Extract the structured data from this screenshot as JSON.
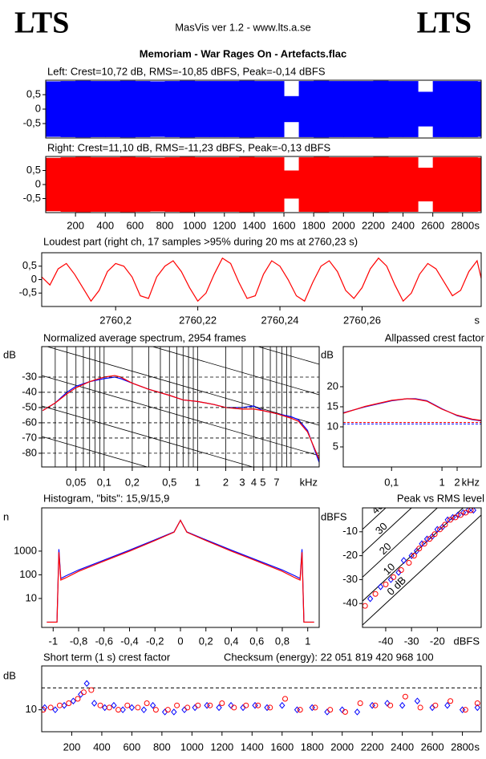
{
  "header": {
    "logo_left": "LTS",
    "app": "MasVis ver 1.2 - www.lts.a.se",
    "logo_right": "LTS",
    "file": "Memoriam - War Rages On - Artefacts.flac"
  },
  "chart_data": [
    {
      "type": "waveform",
      "title": "Left: Crest=10,72 dB, RMS=-10,85 dBFS, Peak=-0,14 dBFS",
      "color": "#0000ff",
      "x": [
        0,
        100,
        200,
        300,
        400,
        500,
        600,
        700,
        800,
        900,
        1000,
        1100,
        1200,
        1300,
        1400,
        1500,
        1600,
        1700,
        1800,
        1900,
        2000,
        2100,
        2200,
        2300,
        2400,
        2500,
        2600,
        2700,
        2800,
        2900
      ],
      "values": [
        0.96,
        0.97,
        0.98,
        0.97,
        0.97,
        0.98,
        0.97,
        0.96,
        0.97,
        0.98,
        0.97,
        0.97,
        0.97,
        0.98,
        0.97,
        0.97,
        0.45,
        0.97,
        0.98,
        0.97,
        0.97,
        0.97,
        0.98,
        0.97,
        0.97,
        0.6,
        0.97,
        0.97,
        0.97,
        0.96
      ],
      "xlim": [
        0,
        2925
      ],
      "ylim": [
        -1,
        1
      ],
      "yticks": [
        {
          "value": 0.5,
          "label": "0,5"
        },
        0,
        {
          "value": -0.5,
          "label": "-0,5"
        }
      ]
    },
    {
      "type": "waveform",
      "title": "Right: Crest=11,10 dB, RMS=-11,23 dBFS, Peak=-0,13 dBFS",
      "color": "#ff0000",
      "x_label": "s",
      "x": [
        0,
        100,
        200,
        300,
        400,
        500,
        600,
        700,
        800,
        900,
        1000,
        1100,
        1200,
        1300,
        1400,
        1500,
        1600,
        1700,
        1800,
        1900,
        2000,
        2100,
        2200,
        2300,
        2400,
        2500,
        2600,
        2700,
        2800,
        2900
      ],
      "values": [
        0.95,
        0.97,
        0.98,
        0.97,
        0.97,
        0.98,
        0.97,
        0.96,
        0.97,
        0.98,
        0.97,
        0.97,
        0.97,
        0.98,
        0.97,
        0.97,
        0.5,
        0.97,
        0.98,
        0.97,
        0.97,
        0.97,
        0.98,
        0.97,
        0.97,
        0.6,
        0.97,
        0.97,
        0.97,
        0.96
      ],
      "xlim": [
        0,
        2925
      ],
      "xticks": [
        200,
        400,
        600,
        800,
        1000,
        1200,
        1400,
        1600,
        1800,
        2000,
        2200,
        2400,
        2600,
        2800
      ],
      "ylim": [
        -1,
        1
      ],
      "yticks": [
        {
          "value": 0.5,
          "label": "0,5"
        },
        0,
        {
          "value": -0.5,
          "label": "-0,5"
        }
      ]
    },
    {
      "type": "line",
      "title": "Loudest part (right ch, 17 samples >95% during 20 ms at 2760,23 s)",
      "color": "#ff0000",
      "x_label": "s",
      "x": [
        2760.182,
        2760.184,
        2760.186,
        2760.188,
        2760.19,
        2760.192,
        2760.194,
        2760.196,
        2760.198,
        2760.2,
        2760.202,
        2760.204,
        2760.206,
        2760.208,
        2760.21,
        2760.212,
        2760.214,
        2760.216,
        2760.218,
        2760.22,
        2760.222,
        2760.224,
        2760.226,
        2760.228,
        2760.23,
        2760.232,
        2760.234,
        2760.236,
        2760.238,
        2760.24,
        2760.242,
        2760.244,
        2760.246,
        2760.248,
        2760.25,
        2760.252,
        2760.254,
        2760.256,
        2760.258,
        2760.26,
        2760.262,
        2760.264,
        2760.266,
        2760.268,
        2760.27,
        2760.272,
        2760.274,
        2760.276,
        2760.278,
        2760.28,
        2760.282,
        2760.284,
        2760.286,
        2760.288,
        2760.29
      ],
      "values": [
        0.1,
        -0.2,
        0.4,
        0.6,
        0.2,
        -0.3,
        -0.8,
        -0.4,
        0.3,
        0.6,
        0.5,
        0.1,
        -0.6,
        -0.7,
        0.1,
        0.5,
        0.7,
        0.3,
        -0.3,
        -0.8,
        -0.5,
        0.2,
        0.8,
        0.6,
        -0.1,
        -0.7,
        -0.6,
        0.2,
        0.7,
        0.5,
        0.0,
        -0.6,
        -0.8,
        -0.1,
        0.5,
        0.7,
        0.3,
        -0.4,
        -0.7,
        -0.3,
        0.4,
        0.8,
        0.5,
        -0.2,
        -0.8,
        -0.5,
        0.2,
        0.6,
        0.4,
        -0.1,
        -0.6,
        -0.4,
        0.3,
        0.7,
        -0.6
      ],
      "xlim": [
        2760.182,
        2760.289
      ],
      "xticks": [
        {
          "value": 2760.2,
          "label": "2760,2"
        },
        {
          "value": 2760.22,
          "label": "2760,22"
        },
        {
          "value": 2760.24,
          "label": "2760,24"
        },
        {
          "value": 2760.26,
          "label": "2760,26"
        }
      ],
      "ylim": [
        -1,
        1
      ],
      "yticks": [
        {
          "value": 0.5,
          "label": "0,5"
        },
        0,
        {
          "value": -0.5,
          "label": "-0,5"
        }
      ]
    },
    {
      "type": "line",
      "title": "Normalized average spectrum, 2954 frames",
      "y_label": "dB",
      "x_label": "kHz",
      "x_scale": "log",
      "grid": true,
      "x": [
        0.022,
        0.03,
        0.04,
        0.05,
        0.07,
        0.1,
        0.13,
        0.15,
        0.2,
        0.3,
        0.5,
        0.7,
        1,
        1.5,
        2,
        3,
        4,
        5,
        7,
        10,
        12,
        15,
        20
      ],
      "series": [
        {
          "color": "#0000ff",
          "values": [
            -52,
            -47,
            -40,
            -36,
            -33,
            -31,
            -30,
            -31,
            -34,
            -38,
            -42,
            -45,
            -46,
            -48,
            -50,
            -50,
            -49,
            -52,
            -54,
            -56,
            -58,
            -65,
            -86
          ]
        },
        {
          "color": "#ff0000",
          "values": [
            -52,
            -47,
            -41,
            -37,
            -33,
            -30,
            -29,
            -30,
            -34,
            -38,
            -42,
            -45,
            -46,
            -48,
            -50,
            -51,
            -51,
            -52,
            -54,
            -57,
            -59,
            -66,
            -84
          ]
        }
      ],
      "xlim": [
        0.0215,
        20
      ],
      "xticks": [
        {
          "value": 0.05,
          "label": "0,05"
        },
        {
          "value": 0.1,
          "label": "0,1"
        },
        {
          "value": 0.2,
          "label": "0,2"
        },
        {
          "value": 0.5,
          "label": "0,5"
        },
        1,
        2,
        3,
        4,
        5,
        7
      ],
      "ylim": [
        -89,
        -10
      ],
      "yticks": [
        -30,
        -40,
        -50,
        -60,
        -70,
        -80
      ]
    },
    {
      "type": "line",
      "title": "Allpassed crest factor",
      "y_label": "dB",
      "x_label": "kHz",
      "x_scale": "log",
      "x": [
        0.011,
        0.03,
        0.1,
        0.2,
        0.3,
        0.5,
        1,
        2,
        4,
        6
      ],
      "series": [
        {
          "color": "#0000ff",
          "values": [
            13.5,
            15,
            16.5,
            17,
            17,
            16.5,
            14.5,
            12.8,
            11.8,
            11.5
          ]
        },
        {
          "color": "#ff0000",
          "values": [
            13.4,
            15.1,
            16.6,
            17,
            16.9,
            16.4,
            14.4,
            12.9,
            11.9,
            11.6
          ]
        }
      ],
      "reference_lines": [
        {
          "value": 10.72,
          "color": "#0000ff"
        },
        {
          "value": 11.1,
          "color": "#ff0000"
        }
      ],
      "xlim": [
        0.011,
        6
      ],
      "xticks": [
        {
          "value": 0.1,
          "label": "0,1"
        },
        1,
        2
      ],
      "ylim": [
        0,
        30
      ],
      "yticks": [
        5,
        10,
        15,
        20
      ]
    },
    {
      "type": "line",
      "title": "Histogram, \"bits\": 15,9/15,9",
      "y_label": "n",
      "y_scale": "log",
      "x": [
        -1.05,
        -0.97,
        -0.955,
        -0.94,
        -0.9,
        -0.8,
        -0.6,
        -0.4,
        -0.2,
        -0.05,
        0,
        0.05,
        0.2,
        0.4,
        0.6,
        0.8,
        0.9,
        0.94,
        0.955,
        0.97,
        1.05
      ],
      "series": [
        {
          "color": "#0000ff",
          "values": [
            1,
            1,
            1200,
            70,
            90,
            160,
            420,
            1100,
            3000,
            6500,
            20000,
            6500,
            3000,
            1100,
            420,
            160,
            90,
            70,
            1200,
            1,
            1
          ]
        },
        {
          "color": "#ff0000",
          "values": [
            1,
            1,
            900,
            60,
            75,
            140,
            380,
            1000,
            2800,
            6300,
            20000,
            6300,
            2800,
            1000,
            380,
            140,
            75,
            60,
            900,
            1,
            1
          ]
        }
      ],
      "xlim": [
        -1.09,
        1.09
      ],
      "xticks": [
        -1,
        {
          "value": -0.8,
          "label": "-0,8"
        },
        {
          "value": -0.6,
          "label": "-0,6"
        },
        {
          "value": -0.4,
          "label": "-0,4"
        },
        {
          "value": -0.2,
          "label": "-0,2"
        },
        0,
        {
          "value": 0.2,
          "label": "0,2"
        },
        {
          "value": 0.4,
          "label": "0,4"
        },
        {
          "value": 0.6,
          "label": "0,6"
        },
        {
          "value": 0.8,
          "label": "0,8"
        },
        1
      ],
      "ylim": [
        0.6,
        67000
      ],
      "yticks": [
        10,
        100,
        1000
      ]
    },
    {
      "type": "scatter",
      "title": "Peak vs RMS level",
      "y_label": "dBFS",
      "x_label": "dBFS",
      "diagonals": [
        {
          "value": 40,
          "label": "40"
        },
        {
          "value": 30,
          "label": "30"
        },
        {
          "value": 20,
          "label": "20"
        },
        {
          "value": 10,
          "label": "10"
        },
        {
          "value": 0,
          "label": "0 dB"
        }
      ],
      "series": [
        {
          "color": "#0000ff",
          "marker": "diamond",
          "x": [
            -46,
            -42,
            -38,
            -35,
            -33,
            -30,
            -28,
            -26,
            -24,
            -22,
            -20,
            -18,
            -16,
            -14,
            -12,
            -10,
            -8,
            -6
          ],
          "values": [
            -38,
            -33,
            -30,
            -27,
            -22,
            -20,
            -18,
            -15,
            -13,
            -12,
            -9,
            -8,
            -5,
            -4,
            -3,
            -2,
            -1,
            -1
          ]
        },
        {
          "color": "#ff0000",
          "marker": "circle",
          "x": [
            -48,
            -44,
            -40,
            -37,
            -34,
            -31,
            -29,
            -27,
            -25,
            -23,
            -21,
            -19,
            -17,
            -15,
            -13,
            -11,
            -9,
            -7
          ],
          "values": [
            -41,
            -36,
            -32,
            -29,
            -26,
            -23,
            -20,
            -17,
            -15,
            -13,
            -11,
            -9,
            -7,
            -5,
            -4,
            -3,
            -2,
            -1
          ]
        }
      ],
      "xlim": [
        -49,
        -3
      ],
      "xticks": [
        -40,
        -30,
        -20
      ],
      "ylim": [
        -50,
        0
      ],
      "yticks": [
        -10,
        -20,
        -30,
        -40
      ]
    },
    {
      "type": "scatter",
      "title": "Short term (1 s) crest factor",
      "annotation": "Checksum (energy):  22 051 819 420 968 100",
      "y_label": "dB",
      "x_label": "s",
      "reference_line": 20,
      "series": [
        {
          "color": "#0000ff",
          "marker": "diamond",
          "x": [
            20,
            90,
            150,
            210,
            260,
            300,
            350,
            420,
            480,
            540,
            600,
            680,
            740,
            820,
            880,
            950,
            1020,
            1100,
            1180,
            1260,
            1340,
            1420,
            1500,
            1600,
            1700,
            1800,
            1900,
            2000,
            2100,
            2200,
            2300,
            2400,
            2500,
            2600,
            2700,
            2800,
            2900
          ],
          "values": [
            11,
            10,
            12,
            14,
            17,
            22,
            13,
            11,
            12,
            10,
            11,
            10,
            12,
            9,
            9,
            10,
            11,
            12,
            11,
            12,
            11,
            12,
            11,
            12,
            10,
            11,
            9,
            10,
            9,
            12,
            13,
            12,
            14,
            11,
            12,
            10,
            11
          ]
        },
        {
          "color": "#ff0000",
          "marker": "circle",
          "x": [
            10,
            60,
            120,
            180,
            240,
            280,
            330,
            390,
            450,
            510,
            570,
            640,
            700,
            760,
            840,
            900,
            970,
            1040,
            1120,
            1200,
            1280,
            1360,
            1440,
            1520,
            1620,
            1720,
            1820,
            1920,
            2020,
            2120,
            2220,
            2320,
            2420,
            2520,
            2620,
            2720,
            2820,
            2900
          ],
          "values": [
            10,
            11,
            12,
            13,
            15,
            18,
            19,
            12,
            11,
            10,
            12,
            11,
            13,
            10,
            10,
            12,
            11,
            12,
            12,
            13,
            11,
            12,
            12,
            11,
            15,
            10,
            11,
            10,
            9,
            13,
            12,
            12,
            16,
            11,
            12,
            14,
            10,
            13
          ]
        }
      ],
      "xlim": [
        0,
        2925
      ],
      "xticks": [
        200,
        400,
        600,
        800,
        1000,
        1200,
        1400,
        1600,
        1800,
        2000,
        2200,
        2400,
        2600,
        2800
      ],
      "ylim": [
        0,
        30
      ],
      "yticks": [
        10
      ]
    }
  ]
}
